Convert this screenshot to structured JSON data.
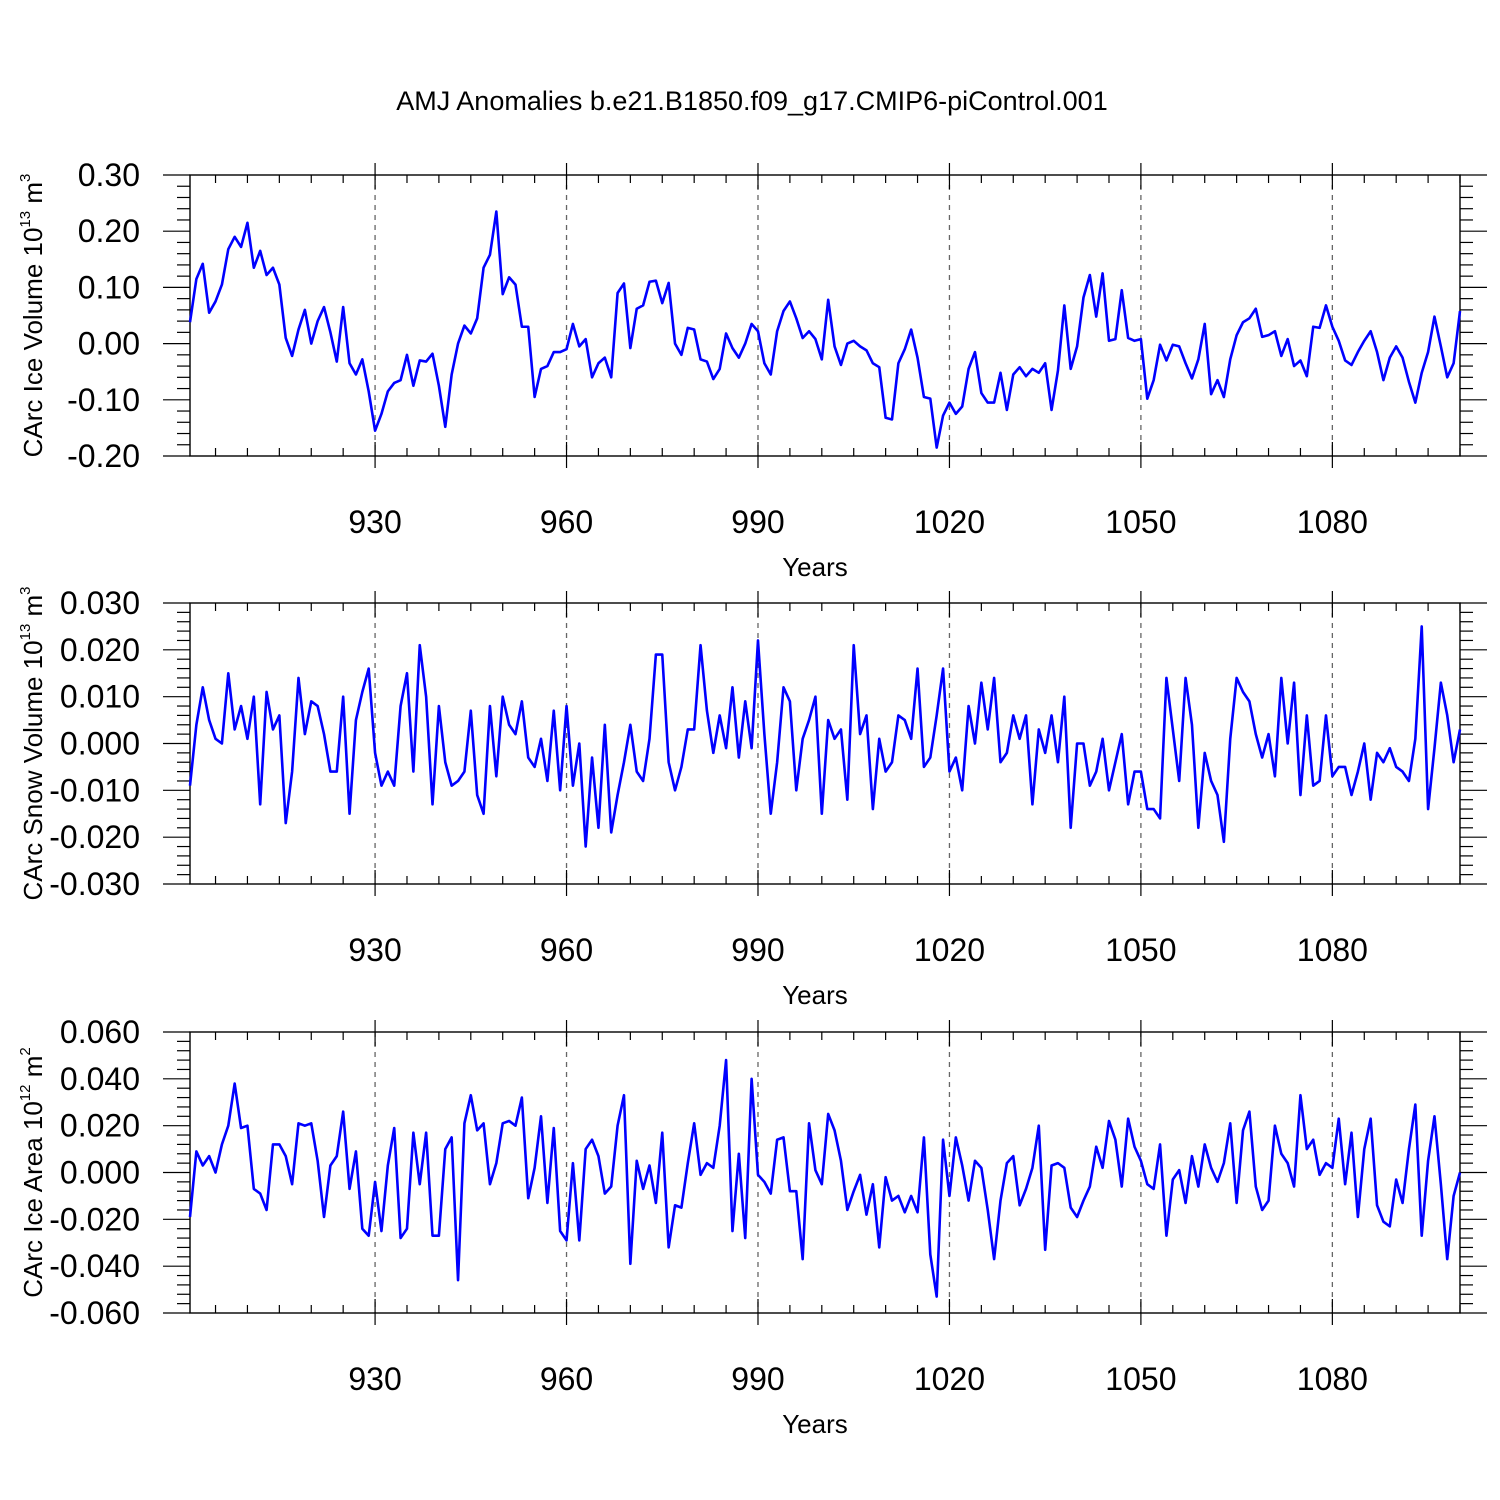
{
  "title": "AMJ Anomalies b.e21.B1850.f09_g17.CMIP6-piControl.001",
  "colors": {
    "line": "#0000ff",
    "axis": "#000000",
    "grid": "#666666"
  },
  "chart_data": [
    {
      "type": "line",
      "ylabel": {
        "text": "CArc Ice Volume 10",
        "exponent": "13",
        "unit": "m",
        "unit_exponent": "3"
      },
      "xlabel": "Years",
      "xlim": [
        901,
        1100
      ],
      "ylim": [
        -0.2,
        0.3
      ],
      "x_ticks": [
        930,
        960,
        990,
        1020,
        1050,
        1080
      ],
      "x_tick_labels": [
        "930",
        "960",
        "990",
        "1020",
        "1050",
        "1080"
      ],
      "y_ticks": [
        -0.2,
        -0.1,
        0.0,
        0.1,
        0.2,
        0.3
      ],
      "y_tick_labels": [
        "-0.20",
        "-0.10",
        "0.00",
        "0.10",
        "0.20",
        "0.30"
      ],
      "grid": "vertical dashed at major x ticks",
      "series": [
        {
          "name": "CArc Ice Volume",
          "x_start": 901,
          "values": [
            0.038,
            0.115,
            0.142,
            0.055,
            0.075,
            0.105,
            0.168,
            0.19,
            0.172,
            0.215,
            0.135,
            0.165,
            0.122,
            0.135,
            0.105,
            0.01,
            -0.022,
            0.025,
            0.06,
            0.0,
            0.04,
            0.065,
            0.02,
            -0.032,
            0.065,
            -0.035,
            -0.055,
            -0.028,
            -0.085,
            -0.155,
            -0.125,
            -0.085,
            -0.07,
            -0.065,
            -0.02,
            -0.075,
            -0.03,
            -0.032,
            -0.018,
            -0.075,
            -0.148,
            -0.055,
            0.0,
            0.032,
            0.018,
            0.045,
            0.135,
            0.158,
            0.235,
            0.088,
            0.118,
            0.105,
            0.03,
            0.03,
            -0.095,
            -0.045,
            -0.04,
            -0.015,
            -0.015,
            -0.01,
            0.035,
            -0.005,
            0.008,
            -0.06,
            -0.035,
            -0.025,
            -0.06,
            0.09,
            0.107,
            -0.008,
            0.062,
            0.068,
            0.11,
            0.112,
            0.072,
            0.108,
            0.0,
            -0.02,
            0.028,
            0.025,
            -0.028,
            -0.032,
            -0.063,
            -0.045,
            0.018,
            -0.008,
            -0.025,
            0.0,
            0.035,
            0.022,
            -0.035,
            -0.055,
            0.022,
            0.058,
            0.075,
            0.045,
            0.01,
            0.022,
            0.008,
            -0.028,
            0.078,
            -0.005,
            -0.038,
            0.0,
            0.005,
            -0.005,
            -0.012,
            -0.035,
            -0.042,
            -0.132,
            -0.135,
            -0.035,
            -0.01,
            0.025,
            -0.025,
            -0.095,
            -0.098,
            -0.185,
            -0.128,
            -0.105,
            -0.125,
            -0.112,
            -0.045,
            -0.015,
            -0.088,
            -0.105,
            -0.105,
            -0.052,
            -0.118,
            -0.055,
            -0.042,
            -0.058,
            -0.045,
            -0.052,
            -0.035,
            -0.118,
            -0.048,
            0.068,
            -0.045,
            -0.005,
            0.082,
            0.122,
            0.048,
            0.125,
            0.005,
            0.008,
            0.095,
            0.01,
            0.005,
            0.008,
            -0.098,
            -0.065,
            -0.002,
            -0.03,
            -0.002,
            -0.005,
            -0.035,
            -0.062,
            -0.028,
            0.035,
            -0.09,
            -0.065,
            -0.095,
            -0.028,
            0.015,
            0.038,
            0.045,
            0.062,
            0.012,
            0.015,
            0.022,
            -0.022,
            0.008,
            -0.04,
            -0.03,
            -0.058,
            0.03,
            0.028,
            0.068,
            0.03,
            0.005,
            -0.03,
            -0.038,
            -0.015,
            0.005,
            0.022,
            -0.015,
            -0.065,
            -0.025,
            -0.005,
            -0.025,
            -0.068,
            -0.105,
            -0.052,
            -0.015,
            0.048,
            -0.005,
            -0.06,
            -0.035,
            0.058
          ]
        }
      ]
    },
    {
      "type": "line",
      "ylabel": {
        "text": "CArc Snow Volume 10",
        "exponent": "13",
        "unit": "m",
        "unit_exponent": "3"
      },
      "xlabel": "Years",
      "xlim": [
        901,
        1100
      ],
      "ylim": [
        -0.03,
        0.03
      ],
      "x_ticks": [
        930,
        960,
        990,
        1020,
        1050,
        1080
      ],
      "x_tick_labels": [
        "930",
        "960",
        "990",
        "1020",
        "1050",
        "1080"
      ],
      "y_ticks": [
        -0.03,
        -0.02,
        -0.01,
        0.0,
        0.01,
        0.02,
        0.03
      ],
      "y_tick_labels": [
        "-0.030",
        "-0.020",
        "-0.010",
        "0.000",
        "0.010",
        "0.020",
        "0.030"
      ],
      "grid": "vertical dashed at major x ticks",
      "series": [
        {
          "name": "CArc Snow Volume",
          "x_start": 901,
          "values": [
            -0.009,
            0.004,
            0.012,
            0.005,
            0.001,
            0.0,
            0.015,
            0.003,
            0.008,
            0.001,
            0.01,
            -0.013,
            0.011,
            0.003,
            0.006,
            -0.017,
            -0.006,
            0.014,
            0.002,
            0.009,
            0.008,
            0.002,
            -0.006,
            -0.006,
            0.01,
            -0.015,
            0.005,
            0.011,
            0.016,
            -0.002,
            -0.009,
            -0.006,
            -0.009,
            0.008,
            0.015,
            -0.006,
            0.021,
            0.01,
            -0.013,
            0.008,
            -0.004,
            -0.009,
            -0.008,
            -0.006,
            0.007,
            -0.011,
            -0.015,
            0.008,
            -0.007,
            0.01,
            0.004,
            0.002,
            0.009,
            -0.003,
            -0.005,
            0.001,
            -0.008,
            0.007,
            -0.01,
            0.008,
            -0.009,
            0.0,
            -0.022,
            -0.003,
            -0.018,
            0.004,
            -0.019,
            -0.011,
            -0.004,
            0.004,
            -0.006,
            -0.008,
            0.001,
            0.019,
            0.019,
            -0.004,
            -0.01,
            -0.005,
            0.003,
            0.003,
            0.021,
            0.007,
            -0.002,
            0.006,
            -0.001,
            0.012,
            -0.003,
            0.009,
            -0.001,
            0.022,
            0.002,
            -0.015,
            -0.004,
            0.012,
            0.009,
            -0.01,
            0.001,
            0.005,
            0.01,
            -0.015,
            0.005,
            0.001,
            0.003,
            -0.012,
            0.021,
            0.002,
            0.006,
            -0.014,
            0.001,
            -0.006,
            -0.004,
            0.006,
            0.005,
            0.001,
            0.016,
            -0.005,
            -0.003,
            0.006,
            0.016,
            -0.006,
            -0.003,
            -0.01,
            0.008,
            0.0,
            0.013,
            0.003,
            0.014,
            -0.004,
            -0.002,
            0.006,
            0.001,
            0.006,
            -0.013,
            0.003,
            -0.002,
            0.006,
            -0.004,
            0.01,
            -0.018,
            0.0,
            0.0,
            -0.009,
            -0.006,
            0.001,
            -0.01,
            -0.004,
            0.002,
            -0.013,
            -0.006,
            -0.006,
            -0.014,
            -0.014,
            -0.016,
            0.014,
            0.003,
            -0.008,
            0.014,
            0.004,
            -0.018,
            -0.002,
            -0.008,
            -0.011,
            -0.021,
            0.001,
            0.014,
            0.011,
            0.009,
            0.002,
            -0.003,
            0.002,
            -0.007,
            0.014,
            0.0,
            0.013,
            -0.011,
            0.006,
            -0.009,
            -0.008,
            0.006,
            -0.007,
            -0.005,
            -0.005,
            -0.011,
            -0.006,
            0.0,
            -0.012,
            -0.002,
            -0.004,
            -0.001,
            -0.005,
            -0.006,
            -0.008,
            0.001,
            0.025,
            -0.014,
            -0.001,
            0.013,
            0.006,
            -0.004,
            0.003
          ]
        }
      ]
    },
    {
      "type": "line",
      "ylabel": {
        "text": "CArc Ice Area 10",
        "exponent": "12",
        "unit": "m",
        "unit_exponent": "2"
      },
      "xlabel": "Years",
      "xlim": [
        901,
        1100
      ],
      "ylim": [
        -0.06,
        0.06
      ],
      "x_ticks": [
        930,
        960,
        990,
        1020,
        1050,
        1080
      ],
      "x_tick_labels": [
        "930",
        "960",
        "990",
        "1020",
        "1050",
        "1080"
      ],
      "y_ticks": [
        -0.06,
        -0.04,
        -0.02,
        0.0,
        0.02,
        0.04,
        0.06
      ],
      "y_tick_labels": [
        "-0.060",
        "-0.040",
        "-0.020",
        "0.000",
        "0.020",
        "0.040",
        "0.060"
      ],
      "grid": "vertical dashed at major x ticks",
      "series": [
        {
          "name": "CArc Ice Area",
          "x_start": 901,
          "values": [
            -0.019,
            0.009,
            0.003,
            0.007,
            0.0,
            0.012,
            0.02,
            0.038,
            0.019,
            0.02,
            -0.007,
            -0.009,
            -0.016,
            0.012,
            0.012,
            0.007,
            -0.005,
            0.021,
            0.02,
            0.021,
            0.005,
            -0.019,
            0.003,
            0.007,
            0.026,
            -0.007,
            0.009,
            -0.024,
            -0.027,
            -0.004,
            -0.025,
            0.003,
            0.019,
            -0.028,
            -0.024,
            0.017,
            -0.005,
            0.017,
            -0.027,
            -0.027,
            0.01,
            0.015,
            -0.046,
            0.021,
            0.033,
            0.018,
            0.021,
            -0.005,
            0.004,
            0.021,
            0.022,
            0.02,
            0.032,
            -0.011,
            0.002,
            0.024,
            -0.013,
            0.019,
            -0.025,
            -0.029,
            0.004,
            -0.029,
            0.01,
            0.014,
            0.007,
            -0.009,
            -0.006,
            0.02,
            0.033,
            -0.039,
            0.005,
            -0.007,
            0.003,
            -0.013,
            0.017,
            -0.032,
            -0.014,
            -0.015,
            0.004,
            0.021,
            -0.001,
            0.004,
            0.002,
            0.02,
            0.048,
            -0.025,
            0.008,
            -0.028,
            0.04,
            -0.001,
            -0.004,
            -0.009,
            0.014,
            0.015,
            -0.008,
            -0.008,
            -0.037,
            0.021,
            0.001,
            -0.005,
            0.025,
            0.018,
            0.005,
            -0.016,
            -0.008,
            -0.001,
            -0.018,
            -0.005,
            -0.032,
            -0.002,
            -0.012,
            -0.01,
            -0.017,
            -0.01,
            -0.017,
            0.015,
            -0.035,
            -0.053,
            0.014,
            -0.01,
            0.015,
            0.003,
            -0.012,
            0.005,
            0.002,
            -0.016,
            -0.037,
            -0.012,
            0.004,
            0.007,
            -0.014,
            -0.007,
            0.002,
            0.02,
            -0.033,
            0.003,
            0.004,
            0.002,
            -0.015,
            -0.019,
            -0.012,
            -0.006,
            0.011,
            0.002,
            0.022,
            0.014,
            -0.006,
            0.023,
            0.011,
            0.005,
            -0.005,
            -0.007,
            0.012,
            -0.027,
            -0.003,
            0.001,
            -0.013,
            0.007,
            -0.006,
            0.012,
            0.002,
            -0.004,
            0.004,
            0.021,
            -0.013,
            0.018,
            0.026,
            -0.006,
            -0.016,
            -0.012,
            0.02,
            0.008,
            0.004,
            -0.006,
            0.033,
            0.01,
            0.014,
            -0.001,
            0.004,
            0.002,
            0.023,
            -0.005,
            0.017,
            -0.019,
            0.01,
            0.023,
            -0.014,
            -0.021,
            -0.023,
            -0.003,
            -0.013,
            0.01,
            0.029,
            -0.027,
            0.005,
            0.024,
            -0.005,
            -0.037,
            -0.01,
            0.0
          ]
        }
      ]
    }
  ]
}
